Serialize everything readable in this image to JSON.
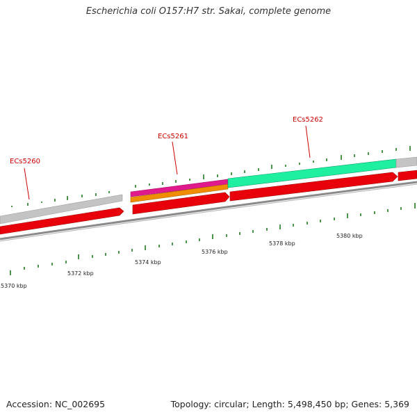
{
  "title": "Escherichia coli O157:H7 str. Sakai, complete genome",
  "footer": {
    "accession": "Accession: NC_002695",
    "summary": "Topology: circular; Length: 5,498,450 bp; Genes: 5,369"
  },
  "scale_labels": [
    "5370 kbp",
    "5372 kbp",
    "5374 kbp",
    "5376 kbp",
    "5378 kbp",
    "5380 kbp"
  ],
  "gene_labels": [
    "ECs5260",
    "ECs5261",
    "ECs5262"
  ],
  "colors": {
    "cds": "#e8000b",
    "cds_edge": "#a30000",
    "gene_gray": "#c4c4c4",
    "feature_pink": "#e0198c",
    "feature_orange": "#f08c00",
    "feature_mint": "#1ff0a0",
    "backbone": "#8a8a8a",
    "tick": "#1f7a1f",
    "label_red": "#cc0000"
  }
}
